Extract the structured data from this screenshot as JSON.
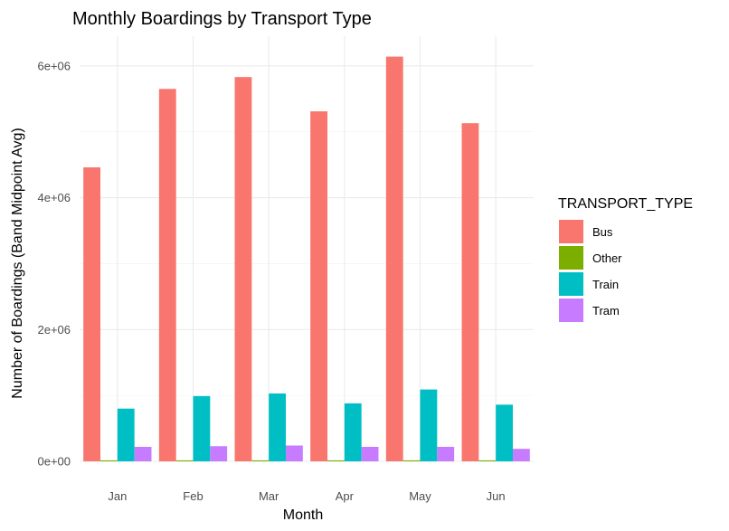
{
  "chart_data": {
    "type": "bar",
    "title": "Monthly Boardings by Transport Type",
    "xlabel": "Month",
    "ylabel": "Number of Boardings (Band Midpoint Avg)",
    "categories": [
      "Jan",
      "Feb",
      "Mar",
      "Apr",
      "May",
      "Jun"
    ],
    "ylim": [
      0,
      6450000
    ],
    "yticks": [
      0,
      2000000,
      4000000,
      6000000
    ],
    "ytick_labels": [
      "0e+00",
      "2e+06",
      "4e+06",
      "6e+06"
    ],
    "grid": true,
    "legend_position": "right",
    "legend_title": "TRANSPORT_TYPE",
    "series": [
      {
        "name": "Bus",
        "color": "#F8766D",
        "values": [
          4460000,
          5650000,
          5830000,
          5310000,
          6140000,
          5130000
        ]
      },
      {
        "name": "Other",
        "color": "#7CAE00",
        "values": [
          15000,
          15000,
          15000,
          15000,
          15000,
          15000
        ]
      },
      {
        "name": "Train",
        "color": "#00BFC4",
        "values": [
          800000,
          990000,
          1030000,
          880000,
          1090000,
          860000
        ]
      },
      {
        "name": "Tram",
        "color": "#C77CFF",
        "values": [
          220000,
          230000,
          240000,
          220000,
          220000,
          190000
        ]
      }
    ]
  }
}
